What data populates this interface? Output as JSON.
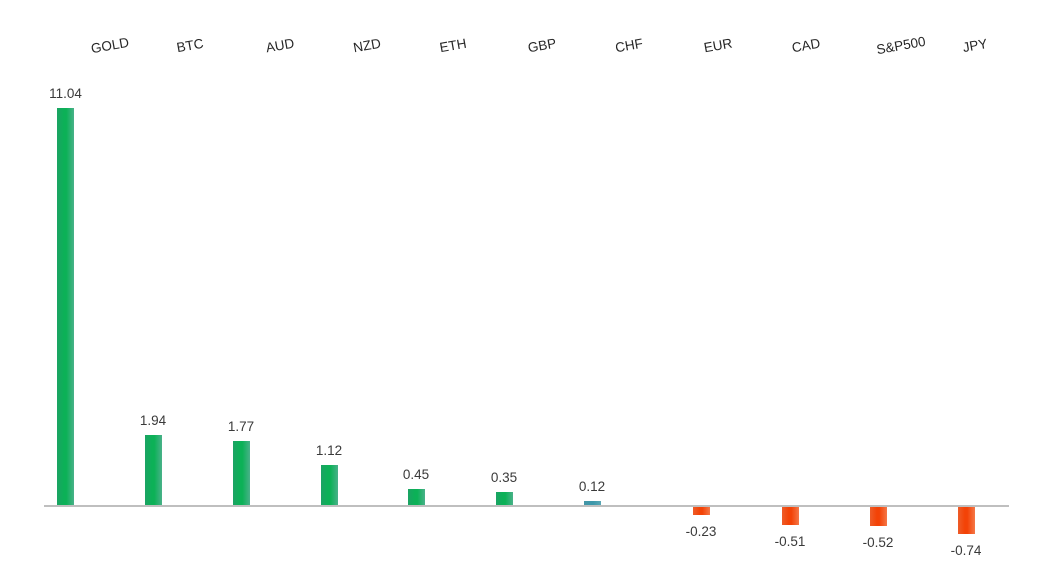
{
  "chart_data": {
    "type": "bar",
    "title": "",
    "xlabel": "",
    "ylabel": "",
    "legend": false,
    "grid": false,
    "ylim": [
      -1,
      11.5
    ],
    "categories": [
      "GOLD",
      "BTC",
      "AUD",
      "NZD",
      "ETH",
      "GBP",
      "CHF",
      "EUR",
      "CAD",
      "S&P500",
      "JPY"
    ],
    "values": [
      11.04,
      1.94,
      1.77,
      1.12,
      0.45,
      0.35,
      0.12,
      -0.23,
      -0.51,
      -0.52,
      -0.74
    ],
    "value_labels": [
      "11.04",
      "1.94",
      "1.77",
      "1.12",
      "0.45",
      "0.35",
      "0.12",
      "-0.23",
      "-0.51",
      "-0.52",
      "-0.74"
    ],
    "bar_color_roles": [
      "positive",
      "positive",
      "positive",
      "positive",
      "positive",
      "positive",
      "neutral",
      "negative",
      "negative",
      "negative",
      "negative"
    ],
    "colors": {
      "positive_edge_left": "#1BA364",
      "positive_mid": "#0CB157",
      "positive_edge_right": "#49B189",
      "neutral_edge_left": "#4496A6",
      "neutral_mid": "#3D97AA",
      "neutral_edge_right": "#5AA7B5",
      "negative_edge_left": "#EE5C28",
      "negative_mid": "#F34307",
      "negative_edge_right": "#F57747",
      "axis_line": "#BFBFBF",
      "category_text": "#262626",
      "value_text": "#3A3A3A"
    }
  }
}
